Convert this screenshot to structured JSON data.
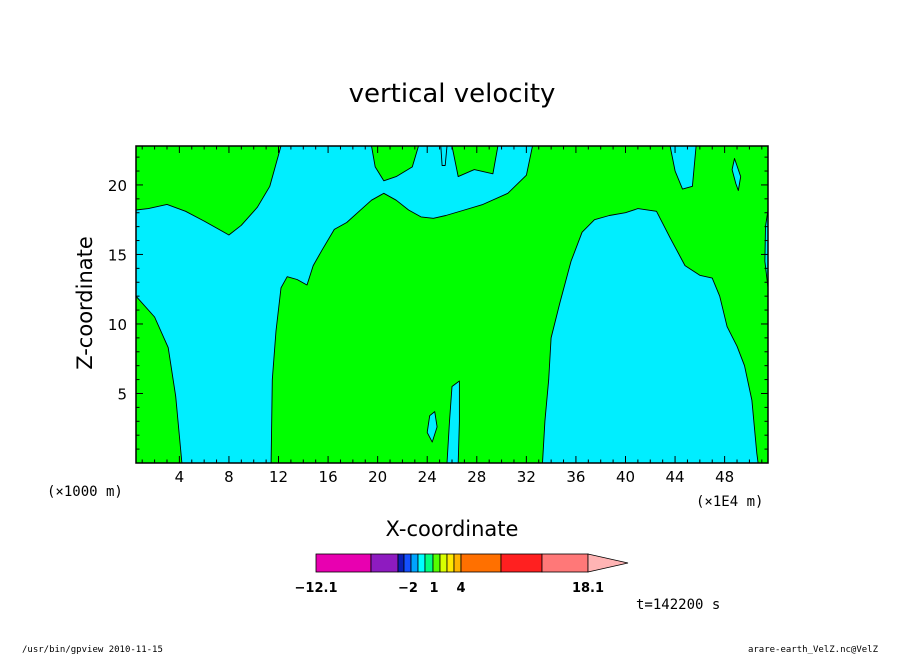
{
  "chart_data": {
    "type": "heatmap",
    "title": "vertical velocity",
    "xlabel": "X-coordinate",
    "ylabel": "Z-coordinate",
    "x_unit_left": "(×1000 m)",
    "x_unit_right": "(×1E4 m)",
    "xlim": [
      0.5,
      51.5
    ],
    "ylim": [
      0,
      22.8
    ],
    "x_ticks": [
      "4",
      "8",
      "12",
      "16",
      "20",
      "24",
      "28",
      "32",
      "36",
      "40",
      "44",
      "48"
    ],
    "y_ticks": [
      "5",
      "10",
      "15",
      "20"
    ],
    "x_tick_values": [
      4,
      8,
      12,
      16,
      20,
      24,
      28,
      32,
      36,
      40,
      44,
      48
    ],
    "y_tick_values": [
      5,
      10,
      15,
      20
    ],
    "shading": {
      "background_color": "#00ff00",
      "region_color": "#00eeff",
      "regions": [
        {
          "name": "cyan-region-west",
          "points": [
            [
              0.5,
              18.2
            ],
            [
              1.5,
              18.3
            ],
            [
              3,
              18.6
            ],
            [
              4.5,
              18.1
            ],
            [
              6,
              17.4
            ],
            [
              7,
              16.9
            ],
            [
              8,
              16.4
            ],
            [
              9,
              17.1
            ],
            [
              10.3,
              18.4
            ],
            [
              11.3,
              19.9
            ],
            [
              12.2,
              22.8
            ],
            [
              19.5,
              22.8
            ],
            [
              19.8,
              21.3
            ],
            [
              20.5,
              20.3
            ],
            [
              21.5,
              20.6
            ],
            [
              22.8,
              21.3
            ],
            [
              23.3,
              22.8
            ],
            [
              25.4,
              22.8
            ],
            [
              26,
              22.8
            ],
            [
              26.5,
              20.6
            ],
            [
              27.8,
              21.1
            ],
            [
              29.3,
              20.8
            ],
            [
              29.7,
              22.8
            ],
            [
              32.5,
              22.8
            ],
            [
              32,
              20.7
            ],
            [
              30.5,
              19.4
            ],
            [
              28.5,
              18.6
            ],
            [
              27,
              18.2
            ],
            [
              25.5,
              17.8
            ],
            [
              24.5,
              17.6
            ],
            [
              23.5,
              17.7
            ],
            [
              22.5,
              18.2
            ],
            [
              21.5,
              18.9
            ],
            [
              20.5,
              19.4
            ],
            [
              19.5,
              18.9
            ],
            [
              18.5,
              18.1
            ],
            [
              17.5,
              17.3
            ],
            [
              16.5,
              16.8
            ],
            [
              15.5,
              15.3
            ],
            [
              14.8,
              14.2
            ],
            [
              14.3,
              12.8
            ],
            [
              13.5,
              13.2
            ],
            [
              12.7,
              13.4
            ],
            [
              12.2,
              12.6
            ],
            [
              11.8,
              9.5
            ],
            [
              11.5,
              6
            ],
            [
              11.4,
              0
            ],
            [
              4.2,
              0
            ],
            [
              3.7,
              4.8
            ],
            [
              3.1,
              8.3
            ],
            [
              2,
              10.5
            ],
            [
              0.5,
              12
            ]
          ]
        },
        {
          "name": "cyan-region-east",
          "points": [
            [
              33.3,
              0
            ],
            [
              33.5,
              3
            ],
            [
              33.8,
              6
            ],
            [
              34,
              9
            ],
            [
              34.7,
              11.5
            ],
            [
              35.6,
              14.5
            ],
            [
              36.5,
              16.6
            ],
            [
              37.5,
              17.5
            ],
            [
              38.7,
              17.8
            ],
            [
              40,
              18
            ],
            [
              41,
              18.3
            ],
            [
              42.5,
              18.1
            ],
            [
              43.6,
              16.2
            ],
            [
              44.8,
              14.2
            ],
            [
              46,
              13.5
            ],
            [
              47,
              13.3
            ],
            [
              47.6,
              12
            ],
            [
              48.2,
              9.8
            ],
            [
              49,
              8.4
            ],
            [
              49.6,
              7
            ],
            [
              50.2,
              4.5
            ],
            [
              50.6,
              0.7
            ],
            [
              50.7,
              0
            ]
          ]
        },
        {
          "name": "cyan-patch-top-right",
          "points": [
            [
              43.6,
              22.8
            ],
            [
              44,
              21
            ],
            [
              44.6,
              19.7
            ],
            [
              45.4,
              19.9
            ],
            [
              45.7,
              22.8
            ]
          ]
        },
        {
          "name": "cyan-patch-x49",
          "points": [
            [
              48.9,
              20.1
            ],
            [
              48.6,
              21.1
            ],
            [
              48.8,
              21.9
            ],
            [
              49.3,
              20.6
            ],
            [
              49.1,
              19.6
            ]
          ]
        },
        {
          "name": "cyan-sliver-right-edge",
          "points": [
            [
              51.5,
              18.2
            ],
            [
              51.3,
              17
            ],
            [
              51.25,
              14.5
            ],
            [
              51.5,
              12.6
            ]
          ]
        },
        {
          "name": "cyan-sliver-x25",
          "points": [
            [
              25.1,
              22.8
            ],
            [
              25.2,
              21.4
            ],
            [
              25.45,
              21.4
            ],
            [
              25.6,
              22.8
            ]
          ]
        },
        {
          "name": "cyan-patch-x24",
          "points": [
            [
              24.4,
              1.5
            ],
            [
              24,
              2.2
            ],
            [
              24.2,
              3.4
            ],
            [
              24.6,
              3.7
            ],
            [
              24.8,
              2.6
            ]
          ]
        },
        {
          "name": "cyan-sliver-x26",
          "points": [
            [
              25.6,
              0
            ],
            [
              25.8,
              3
            ],
            [
              26,
              5.5
            ],
            [
              26.6,
              5.9
            ],
            [
              26.6,
              3
            ],
            [
              26.5,
              0
            ]
          ]
        }
      ]
    },
    "colorbar": {
      "labels": [
        "−12.1",
        "−2",
        "1",
        "4",
        "18.1"
      ],
      "colors": [
        "#e800b0",
        "#8e1bc0",
        "#0a1fb5",
        "#1450ff",
        "#00a4ff",
        "#00ffff",
        "#00ff80",
        "#54ff00",
        "#d8ff00",
        "#ffe800",
        "#ffb400",
        "#ff7000",
        "#ff2020",
        "#ff7878",
        "#ffb4b4"
      ]
    },
    "time_label": "t=142200 s",
    "footer_left": "/usr/bin/gpview  2010-11-15",
    "footer_right": "arare-earth_VelZ.nc@VelZ"
  }
}
